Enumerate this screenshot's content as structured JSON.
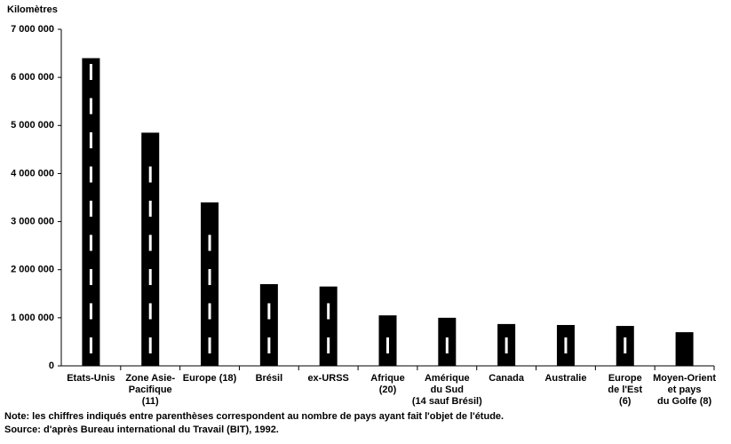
{
  "chart_data": {
    "type": "bar",
    "ylabel": "Kilomètres",
    "categories": [
      "Etats-Unis",
      "Zone Asie-\nPacifique\n(11)",
      "Europe (18)",
      "Brésil",
      "ex-URSS",
      "Afrique\n(20)",
      "Amérique\ndu Sud\n(14 sauf Brésil)",
      "Canada",
      "Australie",
      "Europe\nde l'Est\n(6)",
      "Moyen-Orient\net pays\ndu Golfe (8)"
    ],
    "values": [
      6400000,
      4850000,
      3400000,
      1700000,
      1650000,
      1050000,
      1000000,
      870000,
      850000,
      830000,
      700000
    ],
    "color": "#000000",
    "ylim": [
      0,
      7000000
    ],
    "yticks": [
      0,
      {
        "value": 1000000,
        "label": "1 000 000"
      },
      {
        "value": 2000000,
        "label": "2 000 000"
      },
      {
        "value": 3000000,
        "label": "3 000 000"
      },
      {
        "value": 4000000,
        "label": "4 000 000"
      },
      {
        "value": 5000000,
        "label": "5 000 000"
      },
      {
        "value": 6000000,
        "label": "6 000 000"
      },
      {
        "value": 7000000,
        "label": "7 000 000"
      }
    ],
    "grid": false,
    "notes": [
      "Note: les chiffres indiqués entre parenthèses correspondent au nombre de pays ayant fait l'objet de l'étude.",
      "Source: d'après Bureau international du Travail (BIT), 1992."
    ]
  }
}
